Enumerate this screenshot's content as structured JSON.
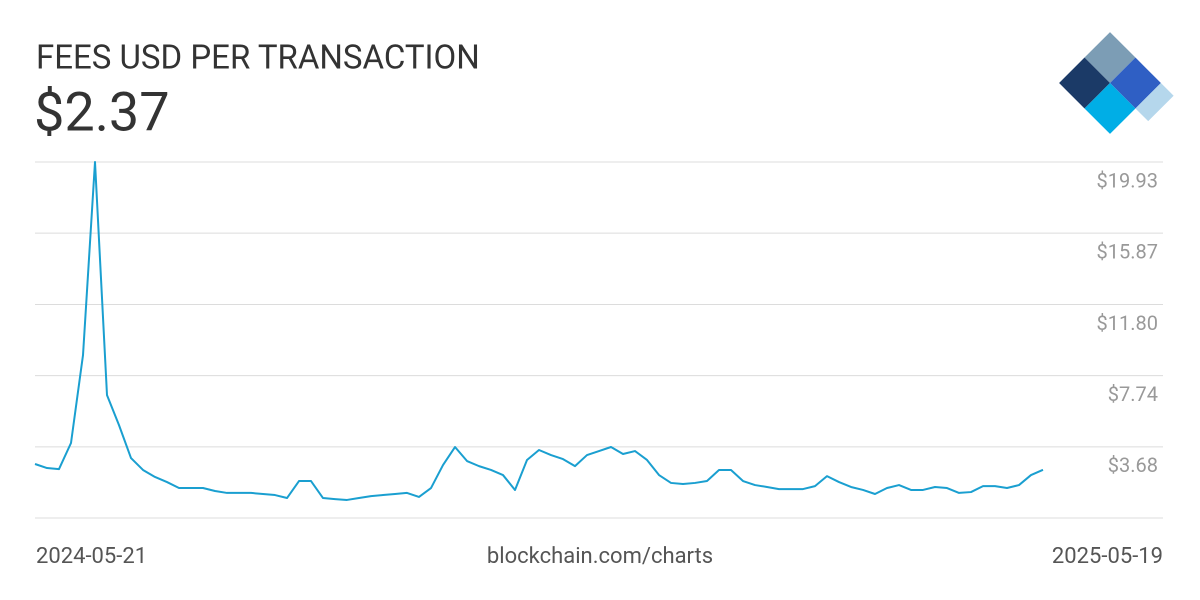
{
  "chart_data": {
    "type": "line",
    "title": "FEES USD PER TRANSACTION",
    "subtitle": "$2.37",
    "source": "blockchain.com/charts",
    "x": [
      "2024-05-21",
      null,
      null,
      null,
      null,
      null,
      null,
      null,
      null,
      null,
      null,
      null,
      null,
      null,
      null,
      null,
      null,
      null,
      null,
      null,
      null,
      null,
      null,
      null,
      null,
      null,
      null,
      null,
      null,
      null,
      null,
      null,
      null,
      null,
      null,
      null,
      null,
      null,
      null,
      null,
      null,
      null,
      null,
      null,
      null,
      null,
      null,
      null,
      null,
      null,
      null,
      null,
      null,
      null,
      null,
      null,
      null,
      null,
      null,
      null,
      null,
      null,
      null,
      null,
      null,
      null,
      null,
      null,
      null,
      null,
      null,
      null,
      null,
      null,
      null,
      null,
      null,
      null,
      null,
      null,
      null,
      null,
      null,
      null,
      "2025-05-19"
    ],
    "series": [
      {
        "name": "Fees USD per transaction",
        "color": "#1a9fd0",
        "values": [
          2.7,
          2.47,
          2.41,
          3.9,
          8.91,
          19.93,
          6.63,
          4.92,
          3.04,
          2.36,
          1.96,
          1.67,
          1.33,
          1.33,
          1.33,
          1.16,
          1.05,
          1.05,
          1.05,
          0.99,
          0.93,
          0.76,
          1.73,
          1.73,
          0.76,
          0.7,
          0.65,
          0.76,
          0.87,
          0.93,
          0.99,
          1.05,
          0.82,
          1.33,
          2.64,
          3.67,
          2.87,
          2.58,
          2.36,
          2.07,
          1.22,
          2.93,
          3.5,
          3.21,
          2.98,
          2.58,
          3.21,
          3.44,
          3.67,
          3.27,
          3.44,
          2.93,
          2.07,
          1.62,
          1.56,
          1.62,
          1.73,
          2.36,
          2.36,
          1.73,
          1.5,
          1.39,
          1.27,
          1.27,
          1.27,
          1.44,
          2.01,
          1.67,
          1.39,
          1.22,
          0.99,
          1.33,
          1.5,
          1.22,
          1.22,
          1.39,
          1.33,
          1.05,
          1.1,
          1.44,
          1.44,
          1.33,
          1.5,
          2.07,
          2.37
        ]
      }
    ],
    "ylim": [
      -0.38,
      19.93
    ],
    "yticks": [
      {
        "value": 3.68,
        "label": "$3.68"
      },
      {
        "value": 7.74,
        "label": "$7.74"
      },
      {
        "value": 11.8,
        "label": "$11.80"
      },
      {
        "value": 15.87,
        "label": "$15.87"
      },
      {
        "value": 19.93,
        "label": "$19.93"
      }
    ],
    "grid": true
  }
}
